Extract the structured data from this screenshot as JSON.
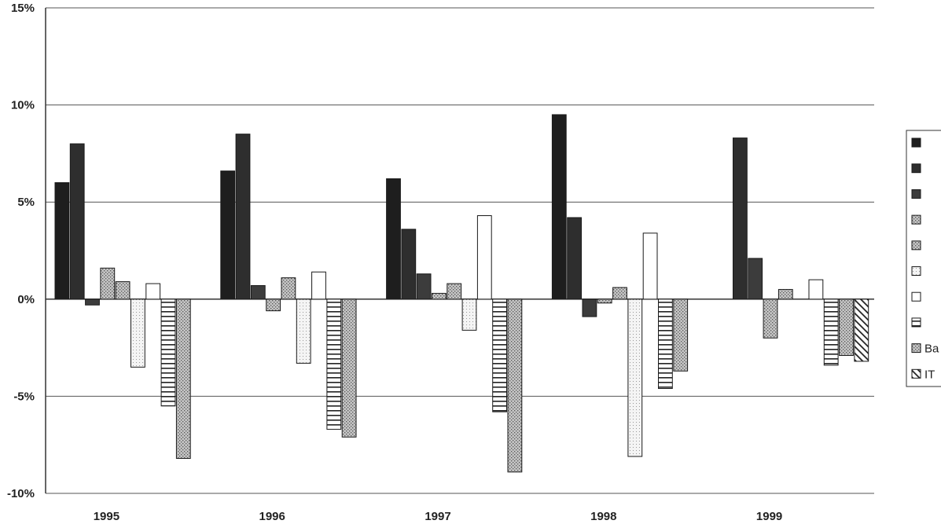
{
  "chart_data": {
    "type": "bar",
    "title": "",
    "xlabel": "",
    "ylabel": "",
    "categories": [
      "1995",
      "1996",
      "1997",
      "1998",
      "1999"
    ],
    "ylim": [
      -0.1,
      0.15
    ],
    "yticks": [
      {
        "value": 0.15,
        "label": "15%"
      },
      {
        "value": 0.1,
        "label": "10%"
      },
      {
        "value": 0.05,
        "label": "5%"
      },
      {
        "value": 0.0,
        "label": "0%"
      },
      {
        "value": -0.05,
        "label": "-5%"
      },
      {
        "value": -0.1,
        "label": "-10%"
      }
    ],
    "grid": true,
    "legend_position": "right",
    "legend_labels_visible": [
      "",
      "",
      "",
      "",
      "",
      "",
      "",
      "",
      "Ba",
      "IT"
    ],
    "series": [
      {
        "values": [
          0.06,
          0.066,
          0.062,
          0.095,
          null
        ],
        "color": "#1e1e1e",
        "pattern": "solid"
      },
      {
        "values": [
          0.08,
          0.085,
          0.036,
          0.042,
          0.083
        ],
        "color": "#2e2e2e",
        "pattern": "solid"
      },
      {
        "values": [
          -0.003,
          0.007,
          0.013,
          -0.009,
          0.021
        ],
        "color": "#3c3c3c",
        "pattern": "solid"
      },
      {
        "values": [
          0.016,
          -0.006,
          0.003,
          -0.002,
          -0.02
        ],
        "color": "#9c9c9c",
        "pattern": "dots"
      },
      {
        "values": [
          0.009,
          0.011,
          0.008,
          0.006,
          0.005
        ],
        "color": "#bdbdbd",
        "pattern": "dots"
      },
      {
        "values": [
          -0.035,
          -0.033,
          -0.016,
          -0.081,
          null
        ],
        "color": "#ffffff",
        "pattern": "fine-dots"
      },
      {
        "values": [
          0.008,
          0.014,
          0.043,
          0.034,
          0.01
        ],
        "color": "#ffffff",
        "pattern": "blank"
      },
      {
        "values": [
          -0.055,
          -0.067,
          -0.058,
          -0.046,
          -0.034
        ],
        "color": "#ffffff",
        "pattern": "horizontal-lines"
      },
      {
        "values": [
          -0.082,
          -0.071,
          -0.089,
          -0.037,
          -0.029
        ],
        "color": "#c8c8c8",
        "pattern": "dots"
      },
      {
        "values": [
          null,
          null,
          null,
          null,
          -0.032
        ],
        "color": "#ffffff",
        "pattern": "diagonal-lines"
      }
    ]
  }
}
